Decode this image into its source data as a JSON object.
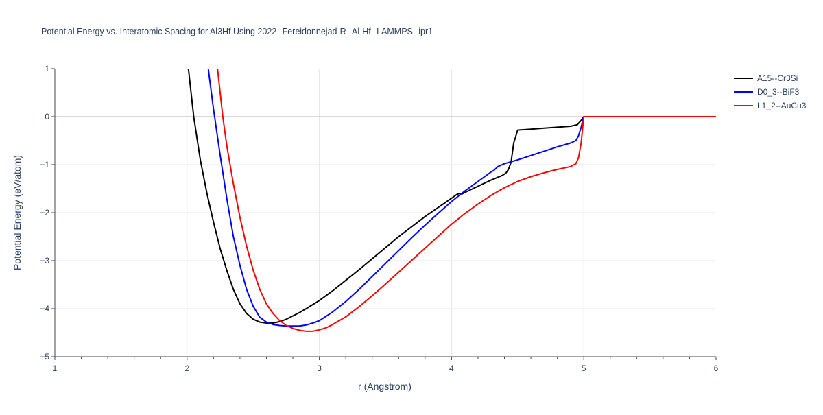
{
  "chart_data": {
    "type": "line",
    "title": "Potential Energy vs. Interatomic Spacing for Al3Hf Using 2022--Fereidonnejad-R--Al-Hf--LAMMPS--ipr1",
    "xlabel": "r (Angstrom)",
    "ylabel": "Potential Energy (eV/atom)",
    "xlim": [
      1,
      6
    ],
    "ylim": [
      -5,
      1
    ],
    "xticks": [
      "1",
      "2",
      "3",
      "4",
      "5",
      "6"
    ],
    "yticks": [
      "1",
      "0",
      "−1",
      "−2",
      "−3",
      "−4",
      "−5"
    ],
    "grid": true,
    "legend_position": "top-right",
    "series": [
      {
        "name": "A15--Cr3Si",
        "color": "#000000",
        "x": [
          2.01,
          2.05,
          2.1,
          2.15,
          2.2,
          2.25,
          2.3,
          2.35,
          2.4,
          2.45,
          2.5,
          2.55,
          2.6,
          2.65,
          2.7,
          2.75,
          2.8,
          2.85,
          2.9,
          3.0,
          3.1,
          3.2,
          3.3,
          3.4,
          3.5,
          3.6,
          3.7,
          3.8,
          3.9,
          4.0,
          4.04,
          4.06,
          4.08,
          4.1,
          4.2,
          4.3,
          4.38,
          4.41,
          4.43,
          4.45,
          4.47,
          4.5,
          4.6,
          4.7,
          4.8,
          4.9,
          4.95,
          4.98,
          5.0,
          5.5,
          6.0
        ],
        "y": [
          1.0,
          0.0,
          -0.9,
          -1.6,
          -2.2,
          -2.75,
          -3.2,
          -3.6,
          -3.9,
          -4.1,
          -4.22,
          -4.28,
          -4.3,
          -4.3,
          -4.27,
          -4.22,
          -4.15,
          -4.08,
          -4.0,
          -3.83,
          -3.63,
          -3.41,
          -3.19,
          -2.96,
          -2.73,
          -2.5,
          -2.29,
          -2.08,
          -1.89,
          -1.7,
          -1.62,
          -1.6,
          -1.61,
          -1.58,
          -1.45,
          -1.32,
          -1.23,
          -1.18,
          -1.1,
          -0.95,
          -0.55,
          -0.28,
          -0.26,
          -0.24,
          -0.22,
          -0.2,
          -0.17,
          -0.08,
          0.0,
          0.0,
          0.0
        ]
      },
      {
        "name": "D0_3--BiF3",
        "color": "#0000ff",
        "x": [
          2.16,
          2.2,
          2.25,
          2.3,
          2.35,
          2.4,
          2.45,
          2.5,
          2.55,
          2.6,
          2.65,
          2.7,
          2.75,
          2.8,
          2.85,
          2.9,
          2.95,
          3.0,
          3.1,
          3.2,
          3.3,
          3.4,
          3.5,
          3.6,
          3.7,
          3.8,
          3.9,
          4.0,
          4.1,
          4.2,
          4.3,
          4.32,
          4.35,
          4.4,
          4.5,
          4.6,
          4.7,
          4.8,
          4.9,
          4.94,
          4.96,
          4.98,
          5.0,
          5.5,
          6.0
        ],
        "y": [
          1.0,
          0.15,
          -0.8,
          -1.7,
          -2.5,
          -3.1,
          -3.6,
          -3.95,
          -4.18,
          -4.28,
          -4.33,
          -4.35,
          -4.36,
          -4.36,
          -4.36,
          -4.34,
          -4.3,
          -4.25,
          -4.07,
          -3.85,
          -3.6,
          -3.33,
          -3.06,
          -2.79,
          -2.52,
          -2.26,
          -2.01,
          -1.77,
          -1.55,
          -1.35,
          -1.15,
          -1.12,
          -1.04,
          -0.98,
          -0.9,
          -0.81,
          -0.72,
          -0.63,
          -0.55,
          -0.5,
          -0.4,
          -0.22,
          0.0,
          0.0,
          0.0
        ]
      },
      {
        "name": "L1_2--AuCu3",
        "color": "#ff0000",
        "x": [
          2.23,
          2.27,
          2.3,
          2.35,
          2.4,
          2.45,
          2.5,
          2.55,
          2.6,
          2.65,
          2.7,
          2.75,
          2.8,
          2.85,
          2.9,
          2.95,
          3.0,
          3.05,
          3.1,
          3.2,
          3.3,
          3.4,
          3.5,
          3.6,
          3.7,
          3.8,
          3.9,
          4.0,
          4.1,
          4.2,
          4.3,
          4.4,
          4.5,
          4.6,
          4.7,
          4.8,
          4.9,
          4.94,
          4.96,
          4.98,
          5.0,
          5.5,
          6.0
        ],
        "y": [
          1.0,
          0.0,
          -0.6,
          -1.4,
          -2.1,
          -2.7,
          -3.2,
          -3.6,
          -3.9,
          -4.1,
          -4.25,
          -4.35,
          -4.41,
          -4.45,
          -4.47,
          -4.47,
          -4.44,
          -4.4,
          -4.33,
          -4.17,
          -3.96,
          -3.73,
          -3.49,
          -3.24,
          -2.99,
          -2.74,
          -2.49,
          -2.24,
          -2.02,
          -1.82,
          -1.64,
          -1.48,
          -1.35,
          -1.25,
          -1.17,
          -1.1,
          -1.04,
          -0.98,
          -0.86,
          -0.55,
          0.0,
          0.0,
          0.0
        ]
      }
    ]
  }
}
